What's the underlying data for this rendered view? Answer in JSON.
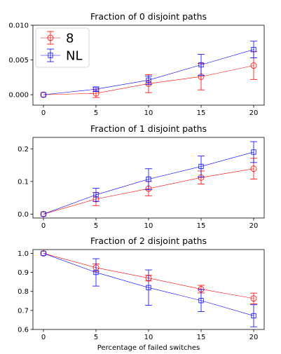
{
  "chart_data": [
    {
      "type": "line",
      "title": "Fraction of 0 disjoint paths",
      "xlabel": "",
      "ylabel": "",
      "x": [
        0,
        5,
        10,
        15,
        20
      ],
      "xticks": [
        "0",
        "5",
        "10",
        "15",
        "20"
      ],
      "xlim": [
        -1,
        21
      ],
      "ylim": [
        -0.0015,
        0.01
      ],
      "yticks": [
        0.0,
        0.005,
        0.01
      ],
      "ytick_labels": [
        "0.000",
        "0.005",
        "0.010"
      ],
      "legend": "upper-left",
      "series": [
        {
          "name": "8",
          "color": "#ff0000",
          "marker": "circle",
          "values": [
            0.0,
            0.0002,
            0.0016,
            0.0026,
            0.0042
          ],
          "errors": [
            0.0,
            0.0006,
            0.0013,
            0.0019,
            0.002
          ]
        },
        {
          "name": "NL",
          "color": "#0000ff",
          "marker": "square",
          "values": [
            0.0,
            0.0008,
            0.0021,
            0.0043,
            0.0065
          ],
          "errors": [
            0.0,
            0.0003,
            0.0006,
            0.0015,
            0.0012
          ]
        }
      ]
    },
    {
      "type": "line",
      "title": "Fraction of 1 disjoint paths",
      "xlabel": "",
      "ylabel": "",
      "x": [
        0,
        5,
        10,
        15,
        20
      ],
      "xticks": [
        "0",
        "5",
        "10",
        "15",
        "20"
      ],
      "xlim": [
        -1,
        21
      ],
      "ylim": [
        -0.012,
        0.235
      ],
      "yticks": [
        0.0,
        0.1,
        0.2
      ],
      "ytick_labels": [
        "0.0",
        "0.1",
        "0.2"
      ],
      "series": [
        {
          "name": "8",
          "color": "#ff0000",
          "marker": "circle",
          "values": [
            0.0,
            0.046,
            0.078,
            0.112,
            0.139
          ],
          "errors": [
            0.0,
            0.02,
            0.022,
            0.02,
            0.032
          ]
        },
        {
          "name": "NL",
          "color": "#0000ff",
          "marker": "square",
          "values": [
            0.0,
            0.059,
            0.107,
            0.146,
            0.19
          ],
          "errors": [
            0.0,
            0.02,
            0.032,
            0.032,
            0.032
          ]
        }
      ]
    },
    {
      "type": "line",
      "title": "Fraction of 2 disjoint paths",
      "xlabel": "Percentage of failed switches",
      "ylabel": "",
      "x": [
        0,
        5,
        10,
        15,
        20
      ],
      "xticks": [
        "0",
        "5",
        "10",
        "15",
        "20"
      ],
      "xlim": [
        -1,
        21
      ],
      "ylim": [
        0.6,
        1.02
      ],
      "yticks": [
        0.6,
        0.7,
        0.8,
        0.9,
        1.0
      ],
      "ytick_labels": [
        "0.6",
        "0.7",
        "0.8",
        "0.9",
        "1.0"
      ],
      "series": [
        {
          "name": "8",
          "color": "#ff0000",
          "marker": "circle",
          "values": [
            1.0,
            0.925,
            0.87,
            0.812,
            0.763
          ],
          "errors": [
            0.0,
            0.02,
            0.015,
            0.02,
            0.028
          ]
        },
        {
          "name": "NL",
          "color": "#0000ff",
          "marker": "square",
          "values": [
            1.0,
            0.9,
            0.82,
            0.752,
            0.672
          ],
          "errors": [
            0.0,
            0.072,
            0.093,
            0.058,
            0.058
          ]
        }
      ]
    }
  ]
}
